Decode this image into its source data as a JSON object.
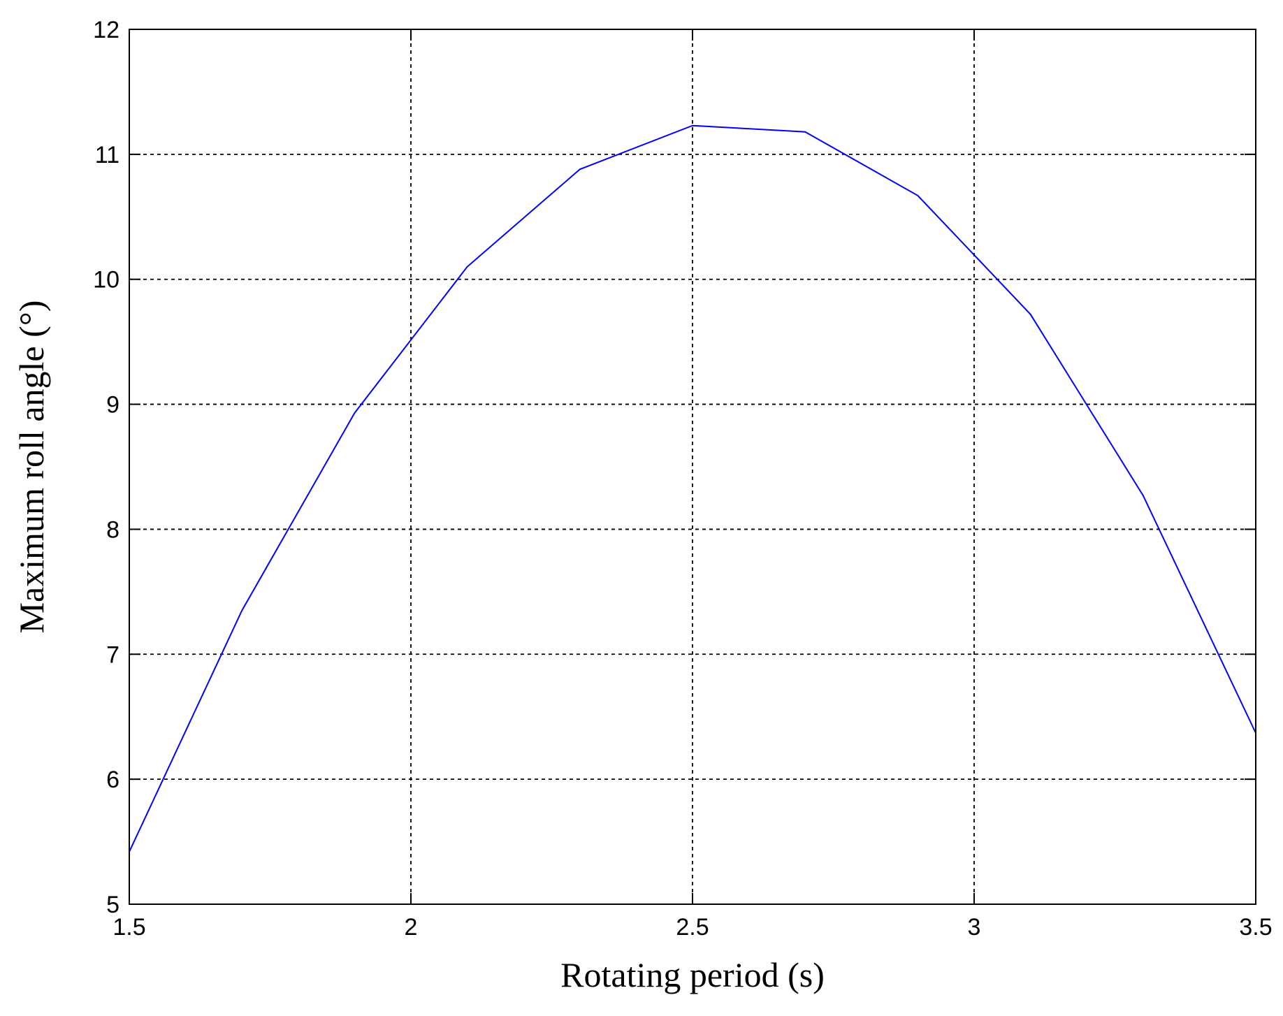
{
  "chart_data": {
    "type": "line",
    "title": "",
    "xlabel": "Rotating period (s)",
    "ylabel": "Maximum roll angle (°)",
    "xlim": [
      1.5,
      3.5
    ],
    "ylim": [
      5,
      12
    ],
    "xticks": [
      1.5,
      2,
      2.5,
      3,
      3.5
    ],
    "xtick_labels": [
      "1.5",
      "2",
      "2.5",
      "3",
      "3.5"
    ],
    "yticks": [
      5,
      6,
      7,
      8,
      9,
      10,
      11,
      12
    ],
    "ytick_labels": [
      "5",
      "6",
      "7",
      "8",
      "9",
      "10",
      "11",
      "12"
    ],
    "grid": true,
    "series": [
      {
        "color": "#0000ff",
        "x": [
          1.5,
          1.7,
          1.9,
          2.1,
          2.3,
          2.5,
          2.7,
          2.9,
          3.1,
          3.3,
          3.5
        ],
        "y": [
          5.42,
          7.35,
          8.93,
          10.1,
          10.88,
          11.23,
          11.18,
          10.67,
          9.72,
          8.27,
          6.37
        ]
      }
    ]
  }
}
